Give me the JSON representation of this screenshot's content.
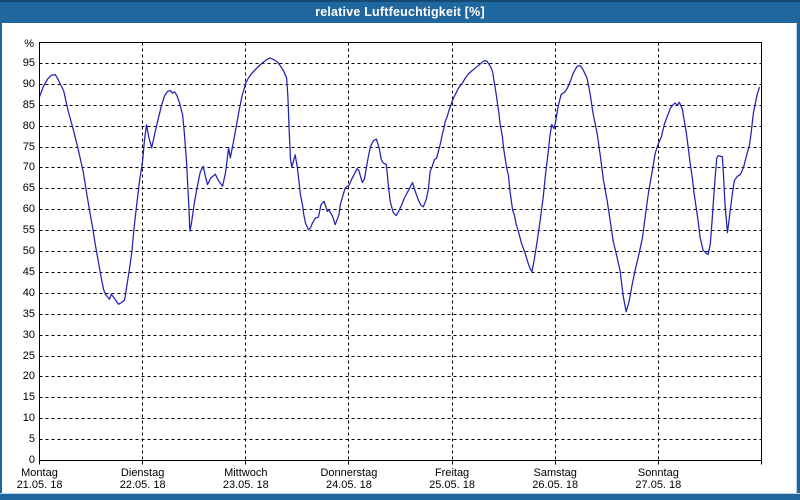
{
  "window": {
    "title": "relative Luftfeuchtigkeit [%]"
  },
  "colors": {
    "titlebar": "#20679f",
    "titlebar_top_edge": "#154a72",
    "frame": "#20679f",
    "frame_inner_edge": "#b9cfe2",
    "title_text": "#ffffff",
    "background": "#ffffff",
    "plot_background": "#ffffff",
    "grid": "#000000",
    "axis_text": "#000000",
    "line": "#2222b2"
  },
  "chart_data": {
    "type": "line",
    "title": "relative Luftfeuchtigkeit [%]",
    "xlabel": "",
    "ylabel": "%",
    "ylim": [
      0,
      100
    ],
    "y_tick_step": 5,
    "y_ticks": [
      0,
      5,
      10,
      15,
      20,
      25,
      30,
      35,
      40,
      45,
      50,
      55,
      60,
      65,
      70,
      75,
      80,
      85,
      90,
      95
    ],
    "grid": "dashed",
    "legend": "none",
    "x_unit": "hours since Monday 00:00",
    "xlim": [
      0,
      168
    ],
    "x_day_ticks": [
      {
        "name": "Montag",
        "date": "21.05. 18"
      },
      {
        "name": "Dienstag",
        "date": "22.05. 18"
      },
      {
        "name": "Mittwoch",
        "date": "23.05. 18"
      },
      {
        "name": "Donnerstag",
        "date": "24.05. 18"
      },
      {
        "name": "Freitag",
        "date": "25.05. 18"
      },
      {
        "name": "Samstag",
        "date": "26.05. 18"
      },
      {
        "name": "Sonntag",
        "date": "27.05. 18"
      }
    ],
    "series": [
      {
        "name": "relative Luftfeuchtigkeit",
        "color": "#2222b2",
        "points": [
          [
            0,
            87
          ],
          [
            0.9,
            89.5
          ],
          [
            1.9,
            91.3
          ],
          [
            2.8,
            92.2
          ],
          [
            3.7,
            92.3
          ],
          [
            4.4,
            91
          ],
          [
            5.6,
            88.5
          ],
          [
            6.7,
            83.5
          ],
          [
            7.9,
            79
          ],
          [
            9.1,
            74
          ],
          [
            10.2,
            69
          ],
          [
            10.9,
            64.5
          ],
          [
            11.6,
            60
          ],
          [
            12.3,
            56
          ],
          [
            13,
            51.5
          ],
          [
            13.7,
            47.5
          ],
          [
            14.4,
            43.5
          ],
          [
            14.9,
            41
          ],
          [
            15.3,
            39.8
          ],
          [
            15.8,
            39.2
          ],
          [
            16.3,
            38.6
          ],
          [
            16.7,
            39.8
          ],
          [
            17.4,
            38.8
          ],
          [
            18.4,
            37.4
          ],
          [
            19.1,
            37.8
          ],
          [
            19.8,
            38.4
          ],
          [
            20.2,
            41
          ],
          [
            20.9,
            45.5
          ],
          [
            21.5,
            50
          ],
          [
            22,
            55.5
          ],
          [
            22.6,
            61
          ],
          [
            23.3,
            67
          ],
          [
            24,
            71.6
          ],
          [
            24.4,
            76.5
          ],
          [
            24.9,
            80.3
          ],
          [
            25.4,
            77.5
          ],
          [
            26.1,
            74.8
          ],
          [
            27,
            79
          ],
          [
            27.7,
            82
          ],
          [
            28.4,
            85
          ],
          [
            29.1,
            87.3
          ],
          [
            29.8,
            88.3
          ],
          [
            30.5,
            88.5
          ],
          [
            30.9,
            87.9
          ],
          [
            31.4,
            88.2
          ],
          [
            31.9,
            87.5
          ],
          [
            32.6,
            85.5
          ],
          [
            33.3,
            82.7
          ],
          [
            33.7,
            78.5
          ],
          [
            34.2,
            71.5
          ],
          [
            34.7,
            62
          ],
          [
            35,
            54.9
          ],
          [
            35.4,
            57
          ],
          [
            36.1,
            62
          ],
          [
            36.8,
            66
          ],
          [
            37.4,
            69
          ],
          [
            38.1,
            70.4
          ],
          [
            38.6,
            68
          ],
          [
            39.1,
            66
          ],
          [
            39.8,
            67.5
          ],
          [
            40.9,
            68.5
          ],
          [
            41.6,
            67
          ],
          [
            42.6,
            65.6
          ],
          [
            43.3,
            69
          ],
          [
            44,
            74.8
          ],
          [
            44.4,
            72.4
          ],
          [
            45.1,
            76
          ],
          [
            45.8,
            80
          ],
          [
            46.5,
            84
          ],
          [
            47.2,
            87.5
          ],
          [
            48,
            90.3
          ],
          [
            48.6,
            91.5
          ],
          [
            49.3,
            92.5
          ],
          [
            50.2,
            93.5
          ],
          [
            51.2,
            94.5
          ],
          [
            52.1,
            95.3
          ],
          [
            53,
            96
          ],
          [
            53.7,
            96.3
          ],
          [
            54.7,
            95.8
          ],
          [
            55.4,
            95.3
          ],
          [
            56.1,
            94.3
          ],
          [
            56.8,
            93.2
          ],
          [
            57.5,
            91.5
          ],
          [
            57.8,
            87
          ],
          [
            58.1,
            78.8
          ],
          [
            58.4,
            72
          ],
          [
            58.7,
            70.2
          ],
          [
            59.5,
            73.1
          ],
          [
            60,
            70
          ],
          [
            60.4,
            66.5
          ],
          [
            60.7,
            63.6
          ],
          [
            61.2,
            61.2
          ],
          [
            61.5,
            58.8
          ],
          [
            61.9,
            56.8
          ],
          [
            62.6,
            55.2
          ],
          [
            63,
            55.6
          ],
          [
            63.5,
            56.8
          ],
          [
            64.2,
            58
          ],
          [
            64.9,
            58.2
          ],
          [
            65.5,
            61.2
          ],
          [
            66.2,
            62
          ],
          [
            67,
            59.6
          ],
          [
            67.3,
            60
          ],
          [
            68.2,
            58.4
          ],
          [
            68.8,
            56.4
          ],
          [
            69.7,
            58.8
          ],
          [
            70,
            61.2
          ],
          [
            70.8,
            64.1
          ],
          [
            71.2,
            65.3
          ],
          [
            72,
            65.8
          ],
          [
            72.7,
            67.4
          ],
          [
            73.5,
            69
          ],
          [
            73.9,
            69.8
          ],
          [
            74.3,
            69.4
          ],
          [
            75.1,
            66.5
          ],
          [
            75.6,
            67.3
          ],
          [
            76.3,
            71.5
          ],
          [
            77,
            75.1
          ],
          [
            77.7,
            76.5
          ],
          [
            78.4,
            76.9
          ],
          [
            79.1,
            74.5
          ],
          [
            79.5,
            72
          ],
          [
            80,
            71.2
          ],
          [
            80.7,
            70.8
          ],
          [
            81.2,
            65.5
          ],
          [
            81.6,
            62
          ],
          [
            82.3,
            59.3
          ],
          [
            83,
            58.6
          ],
          [
            83.5,
            59.5
          ],
          [
            84.2,
            61
          ],
          [
            84.9,
            62.8
          ],
          [
            85.8,
            64.5
          ],
          [
            86.8,
            66.5
          ],
          [
            87.4,
            64.5
          ],
          [
            88.1,
            62.5
          ],
          [
            88.8,
            61
          ],
          [
            89.3,
            60.7
          ],
          [
            90,
            62.5
          ],
          [
            90.5,
            65
          ],
          [
            90.9,
            69.2
          ],
          [
            91.4,
            70.4
          ],
          [
            91.9,
            72
          ],
          [
            92.4,
            72.3
          ],
          [
            92.8,
            73.9
          ],
          [
            93.3,
            75.9
          ],
          [
            93.7,
            77.9
          ],
          [
            94.1,
            79.5
          ],
          [
            94.4,
            81.1
          ],
          [
            94.9,
            82.3
          ],
          [
            95.2,
            83.5
          ],
          [
            95.6,
            84.7
          ],
          [
            96,
            85.9
          ],
          [
            96.7,
            87.5
          ],
          [
            97.5,
            89.1
          ],
          [
            98.4,
            90.3
          ],
          [
            99.1,
            91.5
          ],
          [
            99.8,
            92.5
          ],
          [
            100.7,
            93.3
          ],
          [
            101.9,
            94.3
          ],
          [
            102.6,
            94.9
          ],
          [
            103.3,
            95.5
          ],
          [
            103.7,
            95.7
          ],
          [
            104.2,
            95.4
          ],
          [
            104.9,
            94.3
          ],
          [
            105.4,
            93.1
          ],
          [
            105.7,
            91.1
          ],
          [
            106.1,
            88.7
          ],
          [
            106.5,
            85.9
          ],
          [
            106.9,
            83.1
          ],
          [
            107.2,
            80.3
          ],
          [
            107.7,
            77.5
          ],
          [
            108,
            74.7
          ],
          [
            108.4,
            71.9
          ],
          [
            108.8,
            69.5
          ],
          [
            109.1,
            68.3
          ],
          [
            109.4,
            65
          ],
          [
            109.8,
            62
          ],
          [
            110.1,
            59.8
          ],
          [
            110.5,
            58.7
          ],
          [
            110.9,
            56.6
          ],
          [
            111.4,
            54.9
          ],
          [
            112.1,
            52.1
          ],
          [
            113,
            49.6
          ],
          [
            113.7,
            47.2
          ],
          [
            114.2,
            45.8
          ],
          [
            114.6,
            45.2
          ],
          [
            115.1,
            48
          ],
          [
            115.8,
            52.5
          ],
          [
            116.5,
            57.5
          ],
          [
            117.2,
            63
          ],
          [
            117.7,
            68
          ],
          [
            118.4,
            74
          ],
          [
            118.8,
            78
          ],
          [
            119.2,
            80.4
          ],
          [
            119.7,
            79.4
          ],
          [
            120,
            80.5
          ],
          [
            120.7,
            84.8
          ],
          [
            121.4,
            87.6
          ],
          [
            122.1,
            88
          ],
          [
            122.8,
            89
          ],
          [
            123.5,
            90.7
          ],
          [
            124.2,
            92.7
          ],
          [
            125.1,
            94.3
          ],
          [
            125.8,
            94.5
          ],
          [
            126.5,
            93.5
          ],
          [
            127.4,
            91.5
          ],
          [
            128.1,
            87.9
          ],
          [
            128.8,
            83.1
          ],
          [
            129.8,
            78
          ],
          [
            130.5,
            72.9
          ],
          [
            131.2,
            67.3
          ],
          [
            132.1,
            62.1
          ],
          [
            132.8,
            57.3
          ],
          [
            133.5,
            52.5
          ],
          [
            134.4,
            48.6
          ],
          [
            135.1,
            45.4
          ],
          [
            135.8,
            39.5
          ],
          [
            136.5,
            35.6
          ],
          [
            137.2,
            38
          ],
          [
            137.9,
            42
          ],
          [
            138.6,
            45.5
          ],
          [
            139.3,
            48.6
          ],
          [
            140.3,
            53.3
          ],
          [
            141,
            58.9
          ],
          [
            141.7,
            64.1
          ],
          [
            142.6,
            69.3
          ],
          [
            143.3,
            73.6
          ],
          [
            144,
            75.8
          ],
          [
            144.7,
            77.5
          ],
          [
            145.4,
            80.5
          ],
          [
            146.1,
            82.4
          ],
          [
            146.8,
            84.3
          ],
          [
            147.5,
            85.2
          ],
          [
            147.9,
            85.5
          ],
          [
            148.4,
            85
          ],
          [
            148.9,
            85.7
          ],
          [
            149.6,
            84
          ],
          [
            150,
            81.5
          ],
          [
            150.5,
            78.5
          ],
          [
            151,
            74.5
          ],
          [
            151.4,
            71
          ],
          [
            151.9,
            67.7
          ],
          [
            152.3,
            64
          ],
          [
            152.8,
            60.5
          ],
          [
            153.3,
            57
          ],
          [
            153.7,
            53.5
          ],
          [
            154.4,
            50.3
          ],
          [
            155.1,
            49.6
          ],
          [
            155.6,
            49.3
          ],
          [
            156.1,
            52
          ],
          [
            156.5,
            57.4
          ],
          [
            156.8,
            62
          ],
          [
            157.2,
            67.6
          ],
          [
            157.6,
            72.4
          ],
          [
            157.9,
            72.9
          ],
          [
            158.4,
            72.8
          ],
          [
            158.9,
            72.7
          ],
          [
            159.1,
            69.2
          ],
          [
            159.5,
            61.2
          ],
          [
            160.1,
            54.5
          ],
          [
            160.7,
            59.6
          ],
          [
            161.2,
            63.7
          ],
          [
            161.7,
            67
          ],
          [
            162.4,
            68
          ],
          [
            163.1,
            68.4
          ],
          [
            163.8,
            70.1
          ],
          [
            164.2,
            71.7
          ],
          [
            164.7,
            73.6
          ],
          [
            165.2,
            75.5
          ],
          [
            165.6,
            78.5
          ],
          [
            166.1,
            83
          ],
          [
            166.6,
            85.6
          ],
          [
            167,
            87.6
          ],
          [
            167.5,
            89.2
          ]
        ]
      }
    ]
  }
}
